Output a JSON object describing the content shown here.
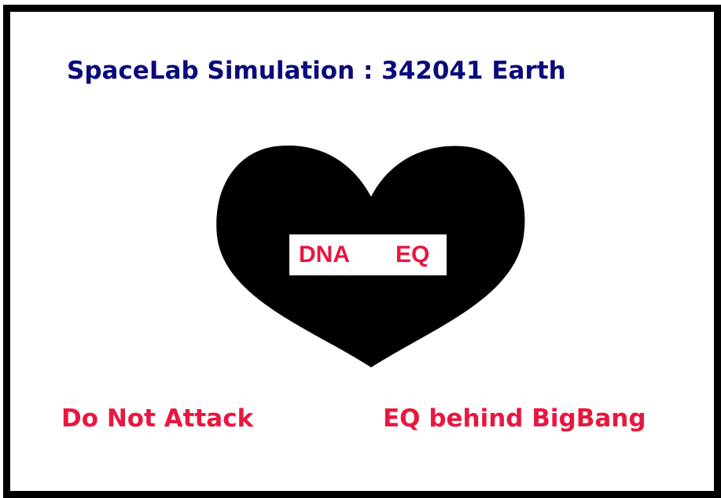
{
  "title": "SpaceLab Simulation :  342041 Earth",
  "heart": {
    "left_label": "DNA",
    "right_label": "EQ"
  },
  "footer": {
    "left": "Do Not Attack",
    "right": "EQ behind BigBang"
  }
}
